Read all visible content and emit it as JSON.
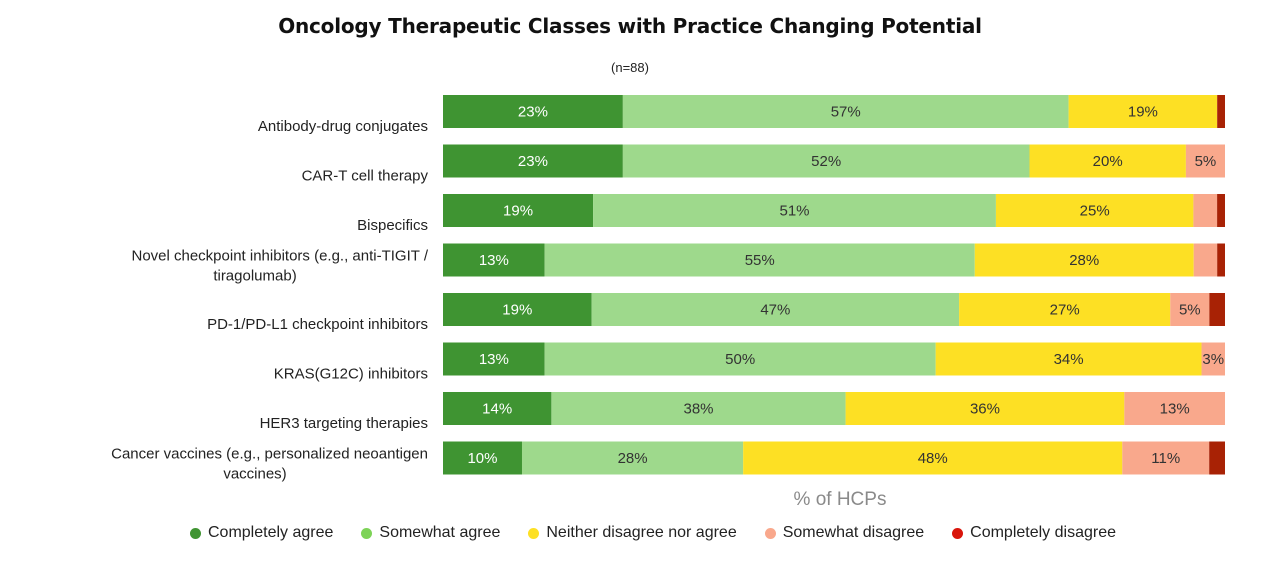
{
  "chart_data": {
    "type": "bar",
    "orientation": "horizontal",
    "stacked": true,
    "title": "Oncology Therapeutic Classes with Practice Changing Potential",
    "subtitle": "(n=88)",
    "xlabel": "% of HCPs",
    "ylabel": "",
    "xlim": [
      0,
      100
    ],
    "grid": false,
    "legend_position": "bottom",
    "categories": [
      [
        "Antibody-drug conjugates"
      ],
      [
        "CAR-T cell therapy"
      ],
      [
        "Bispecifics"
      ],
      [
        "Novel checkpoint inhibitors (e.g., anti-TIGIT /",
        "tiragolumab)"
      ],
      [
        "PD-1/PD-L1 checkpoint inhibitors"
      ],
      [
        "KRAS(G12C) inhibitors"
      ],
      [
        "HER3 targeting therapies"
      ],
      [
        "Cancer vaccines (e.g., personalized neoantigen",
        "vaccines)"
      ]
    ],
    "series": [
      {
        "name": "Completely agree",
        "color": "#3f9432",
        "label_color": "#ffffff",
        "values": [
          23,
          23,
          19,
          13,
          19,
          13,
          14,
          10
        ]
      },
      {
        "name": "Somewhat agree",
        "color": "#9ed98c",
        "label_color": "#333333",
        "values": [
          57,
          52,
          51,
          55,
          47,
          50,
          38,
          28
        ]
      },
      {
        "name": "Neither disagree nor agree",
        "color": "#fde024",
        "label_color": "#333333",
        "values": [
          19,
          20,
          25,
          28,
          27,
          34,
          36,
          48
        ]
      },
      {
        "name": "Somewhat disagree",
        "color": "#f9a88c",
        "label_color": "#333333",
        "values": [
          0,
          5,
          3,
          3,
          5,
          3,
          13,
          11
        ]
      },
      {
        "name": "Completely disagree",
        "color": "#a82205",
        "label_color": "#ffffff",
        "values": [
          1,
          0,
          1,
          1,
          2,
          0,
          0,
          2
        ]
      }
    ],
    "data_labels": [
      [
        "23%",
        "57%",
        "19%",
        "",
        ""
      ],
      [
        "23%",
        "52%",
        "20%",
        "5%",
        ""
      ],
      [
        "19%",
        "51%",
        "25%",
        "",
        ""
      ],
      [
        "13%",
        "55%",
        "28%",
        "",
        ""
      ],
      [
        "19%",
        "47%",
        "27%",
        "5%",
        ""
      ],
      [
        "13%",
        "50%",
        "34%",
        "3%",
        ""
      ],
      [
        "14%",
        "38%",
        "36%",
        "13%",
        ""
      ],
      [
        "10%",
        "28%",
        "48%",
        "11%",
        ""
      ]
    ]
  },
  "legend": [
    {
      "label": "Completely agree",
      "color": "#3f9432"
    },
    {
      "label": "Somewhat agree",
      "color": "#7dd357"
    },
    {
      "label": "Neither disagree nor agree",
      "color": "#fde024"
    },
    {
      "label": "Somewhat disagree",
      "color": "#f9a88c"
    },
    {
      "label": "Completely disagree",
      "color": "#d9150b"
    }
  ]
}
